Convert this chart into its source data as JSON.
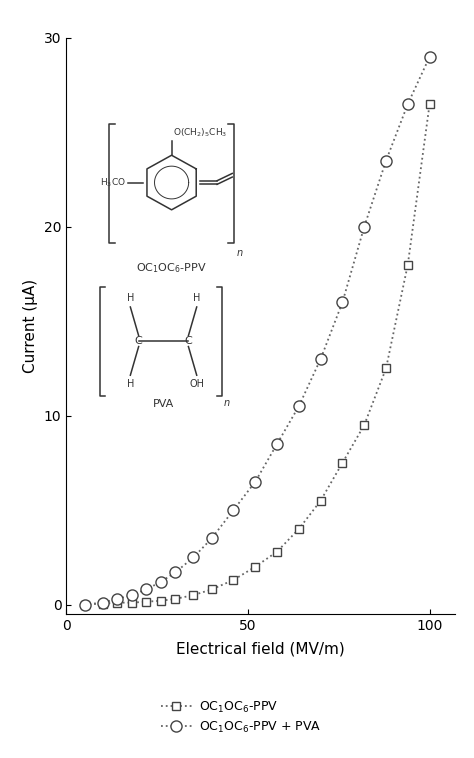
{
  "title": "",
  "xlabel": "Electrical field (MV/m)",
  "ylabel": "Current (μA)",
  "xlim": [
    0,
    107
  ],
  "ylim": [
    -0.5,
    30
  ],
  "xticks": [
    0,
    50,
    100
  ],
  "yticks": [
    0,
    10,
    20,
    30
  ],
  "series1_x": [
    5,
    10,
    14,
    18,
    22,
    26,
    30,
    35,
    40,
    46,
    52,
    58,
    64,
    70,
    76,
    82,
    88,
    94,
    100
  ],
  "series1_y": [
    0.0,
    0.05,
    0.1,
    0.1,
    0.15,
    0.2,
    0.3,
    0.5,
    0.8,
    1.3,
    2.0,
    2.8,
    4.0,
    5.5,
    7.5,
    9.5,
    12.5,
    18.0,
    26.5
  ],
  "series2_x": [
    5,
    10,
    14,
    18,
    22,
    26,
    30,
    35,
    40,
    46,
    52,
    58,
    64,
    70,
    76,
    82,
    88,
    94,
    100
  ],
  "series2_y": [
    0.0,
    0.1,
    0.3,
    0.5,
    0.8,
    1.2,
    1.7,
    2.5,
    3.5,
    5.0,
    6.5,
    8.5,
    10.5,
    13.0,
    16.0,
    20.0,
    23.5,
    26.5,
    29.0
  ],
  "line_color": "#666666",
  "marker1": "s",
  "marker2": "o",
  "marker_size1": 6,
  "marker_size2": 8,
  "marker_color": "white",
  "marker_edge_color": "#444444",
  "background_color": "#ffffff",
  "figsize": [
    4.74,
    7.58
  ],
  "dpi": 100
}
